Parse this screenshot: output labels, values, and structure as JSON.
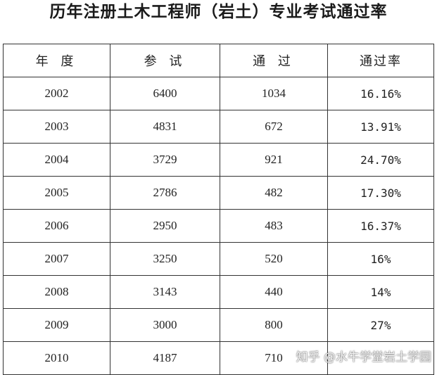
{
  "title": "历年注册土木工程师（岩土）专业考试通过率",
  "table": {
    "headers": [
      "年 度",
      "参 试",
      "通 过",
      "通过率"
    ],
    "rows": [
      [
        "2002",
        "6400",
        "1034",
        "16.16%"
      ],
      [
        "2003",
        "4831",
        "672",
        "13.91%"
      ],
      [
        "2004",
        "3729",
        "921",
        "24.70%"
      ],
      [
        "2005",
        "2786",
        "482",
        "17.30%"
      ],
      [
        "2006",
        "2950",
        "483",
        "16.37%"
      ],
      [
        "2007",
        "3250",
        "520",
        "16%"
      ],
      [
        "2008",
        "3143",
        "440",
        "14%"
      ],
      [
        "2009",
        "3000",
        "800",
        "27%"
      ],
      [
        "2010",
        "4187",
        "710",
        ""
      ]
    ]
  },
  "watermark": "知乎 @水牛学堂岩土学园"
}
